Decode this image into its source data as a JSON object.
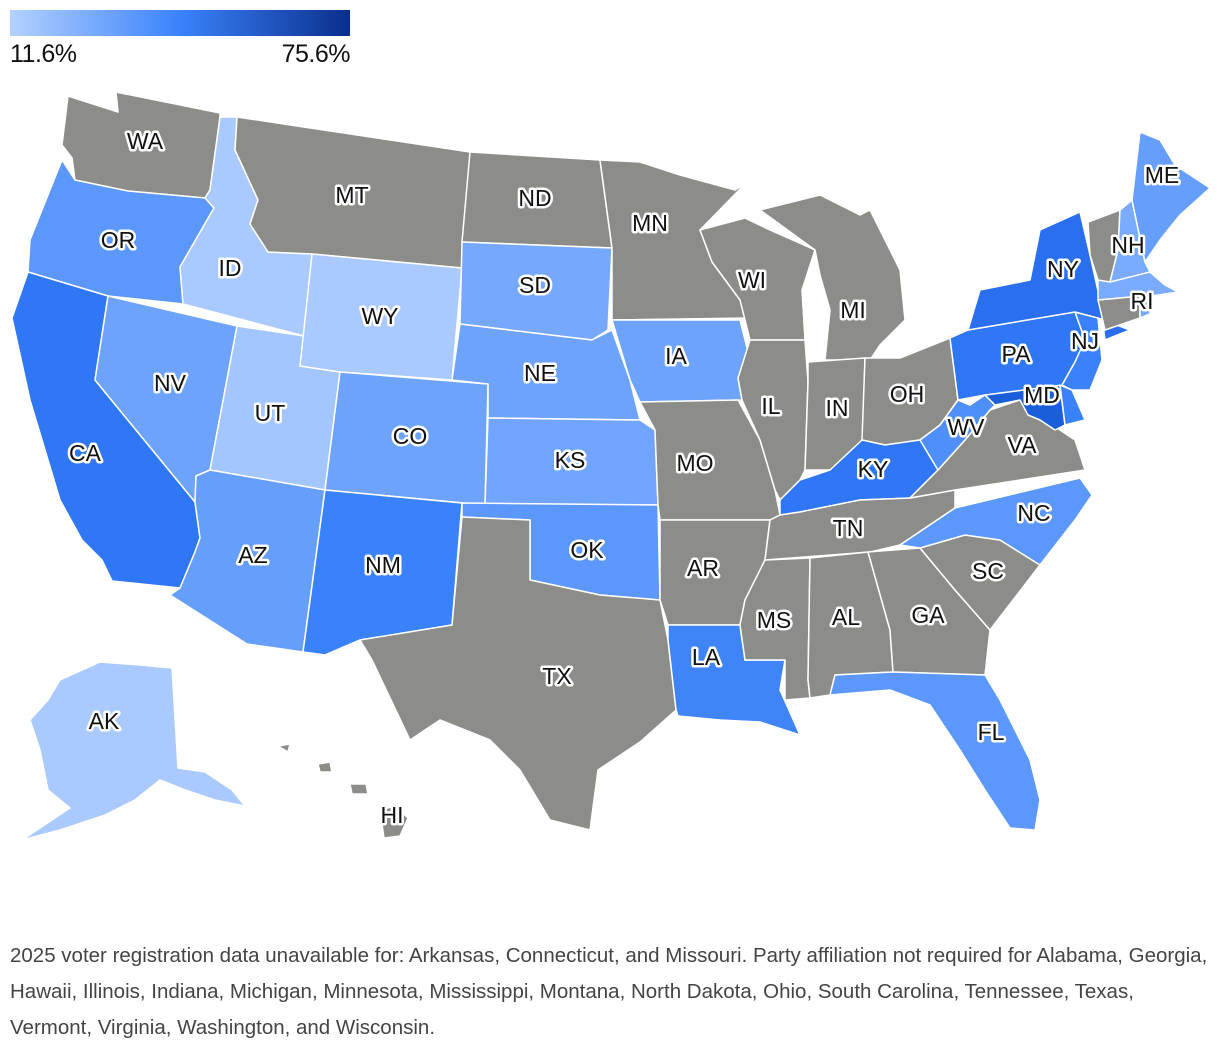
{
  "legend": {
    "min_label": "11.6%",
    "max_label": "75.6%",
    "min_color": "#b3d1ff",
    "mid_color": "#3a82fb",
    "max_color": "#0a2f8c"
  },
  "no_data_color": "#8c8c89",
  "states": {
    "WA": {
      "label": "WA",
      "fill": "#8c8c89"
    },
    "OR": {
      "label": "OR",
      "fill": "#5c97fb"
    },
    "CA": {
      "label": "CA",
      "fill": "#2f77f4"
    },
    "ID": {
      "label": "ID",
      "fill": "#a9c9ff"
    },
    "NV": {
      "label": "NV",
      "fill": "#6ea3fc"
    },
    "UT": {
      "label": "UT",
      "fill": "#a4c6ff"
    },
    "AZ": {
      "label": "AZ",
      "fill": "#669efc"
    },
    "MT": {
      "label": "MT",
      "fill": "#8c8c89"
    },
    "WY": {
      "label": "WY",
      "fill": "#a9c9ff"
    },
    "CO": {
      "label": "CO",
      "fill": "#6ea3fc"
    },
    "NM": {
      "label": "NM",
      "fill": "#3a82fb"
    },
    "ND": {
      "label": "ND",
      "fill": "#8c8c89"
    },
    "SD": {
      "label": "SD",
      "fill": "#76a8fd"
    },
    "NE": {
      "label": "NE",
      "fill": "#6ea3fc"
    },
    "KS": {
      "label": "KS",
      "fill": "#70a4fd"
    },
    "OK": {
      "label": "OK",
      "fill": "#5c97fb"
    },
    "TX": {
      "label": "TX",
      "fill": "#8c8c89"
    },
    "MN": {
      "label": "MN",
      "fill": "#8c8c89"
    },
    "IA": {
      "label": "IA",
      "fill": "#6ea3fc"
    },
    "MO": {
      "label": "MO",
      "fill": "#8c8c89"
    },
    "AR": {
      "label": "AR",
      "fill": "#8c8c89"
    },
    "LA": {
      "label": "LA",
      "fill": "#3f85f7"
    },
    "WI": {
      "label": "WI",
      "fill": "#8c8c89"
    },
    "IL": {
      "label": "IL",
      "fill": "#8c8c89"
    },
    "MI": {
      "label": "MI",
      "fill": "#8c8c89"
    },
    "IN": {
      "label": "IN",
      "fill": "#8c8c89"
    },
    "OH": {
      "label": "OH",
      "fill": "#8c8c89"
    },
    "KY": {
      "label": "KY",
      "fill": "#2f77f4"
    },
    "TN": {
      "label": "TN",
      "fill": "#8c8c89"
    },
    "MS": {
      "label": "MS",
      "fill": "#8c8c89"
    },
    "AL": {
      "label": "AL",
      "fill": "#8c8c89"
    },
    "GA": {
      "label": "GA",
      "fill": "#8c8c89"
    },
    "FL": {
      "label": "FL",
      "fill": "#5c97fb"
    },
    "SC": {
      "label": "SC",
      "fill": "#8c8c89"
    },
    "NC": {
      "label": "NC",
      "fill": "#5c97fb"
    },
    "VA": {
      "label": "VA",
      "fill": "#8c8c89"
    },
    "WV": {
      "label": "WV",
      "fill": "#4f8ffa"
    },
    "MD": {
      "label": "MD",
      "fill": "#1a5fd9"
    },
    "DE": {
      "label": "",
      "fill": "#3a82fb"
    },
    "PA": {
      "label": "PA",
      "fill": "#2f77f4"
    },
    "NJ": {
      "label": "NJ",
      "fill": "#3a82fb"
    },
    "NY": {
      "label": "NY",
      "fill": "#2a6ff0"
    },
    "CT": {
      "label": "",
      "fill": "#8c8c89"
    },
    "RI": {
      "label": "RI",
      "fill": "#7aabff"
    },
    "MA": {
      "label": "",
      "fill": "#7aabff"
    },
    "VT": {
      "label": "",
      "fill": "#8c8c89"
    },
    "NH": {
      "label": "NH",
      "fill": "#7aabff"
    },
    "ME": {
      "label": "ME",
      "fill": "#669efc"
    },
    "AK": {
      "label": "AK",
      "fill": "#a9c9ff"
    },
    "HI": {
      "label": "HI",
      "fill": "#8c8c89"
    }
  },
  "footnote": "2025 voter registration data unavailable for: Arkansas, Connecticut, and Missouri. Party affiliation not required for Alabama, Georgia, Hawaii, Illinois, Indiana, Michigan, Minnesota, Mississippi, Montana, North Dakota, Ohio, South Carolina, Tennessee, Texas, Vermont, Virginia, Washington, and Wisconsin."
}
